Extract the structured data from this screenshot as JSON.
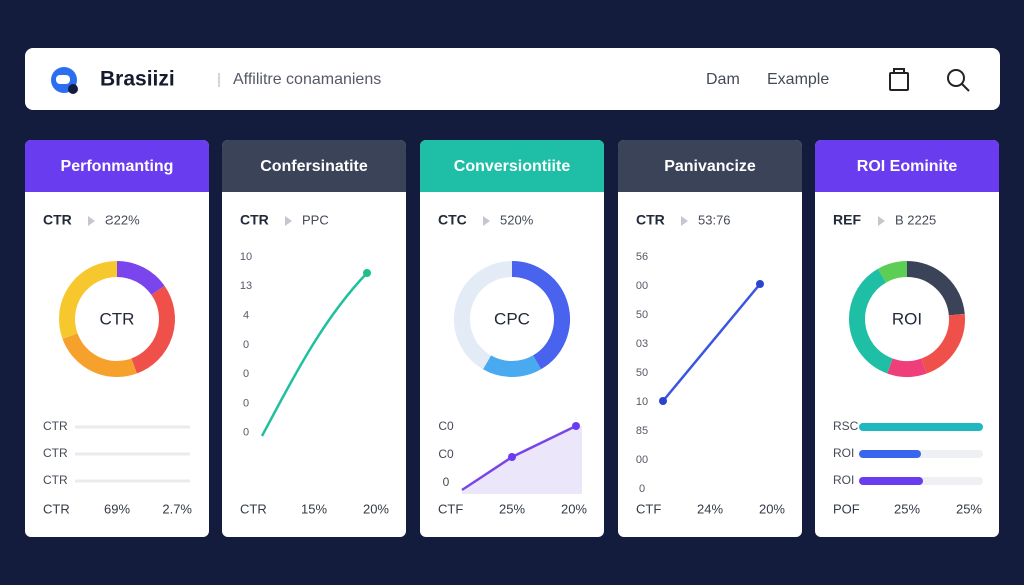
{
  "header": {
    "brand": "Brasiizi",
    "subtitle": "Affilitre conamaniens",
    "nav": [
      "Dam",
      "Example"
    ]
  },
  "cards": [
    {
      "title": "Perfonmanting",
      "color": "#6a3cf0",
      "metric": [
        "CTR",
        "Ƨ22%"
      ],
      "donut": "CTR",
      "rows": [
        "CTR",
        "CTR",
        "CTR"
      ],
      "footer": [
        "CTR",
        "69%",
        "2.7%"
      ]
    },
    {
      "title": "Confersinatite",
      "color": "#3b4358",
      "metric": [
        "CTR",
        "PPC"
      ],
      "axis_labels": [
        "10",
        "13",
        "4",
        "0",
        "0",
        "0",
        "0"
      ],
      "footer": [
        "CTR",
        "15%",
        "20%"
      ]
    },
    {
      "title": "Conversiontiite",
      "color": "#1ebfa6",
      "metric": [
        "CTC",
        "520%"
      ],
      "donut": "CPC",
      "area_labels": [
        "C0",
        "C0",
        "0"
      ],
      "footer": [
        "CTF",
        "25%",
        "20%"
      ]
    },
    {
      "title": "Panivancize",
      "color": "#3b4358",
      "metric": [
        "CTR",
        "53:76"
      ],
      "axis_labels": [
        "56",
        "00",
        "50",
        "03",
        "50",
        "10",
        "85",
        "00",
        "0"
      ],
      "footer": [
        "CTF",
        "24%",
        "20%"
      ]
    },
    {
      "title": "ROI Eominite",
      "color": "#6a3cf0",
      "metric": [
        "REF",
        "B 2225"
      ],
      "donut": "ROI",
      "rows": [
        "RSC",
        "ROI",
        "ROI"
      ],
      "footer": [
        "POF",
        "25%",
        "25%"
      ]
    }
  ]
}
